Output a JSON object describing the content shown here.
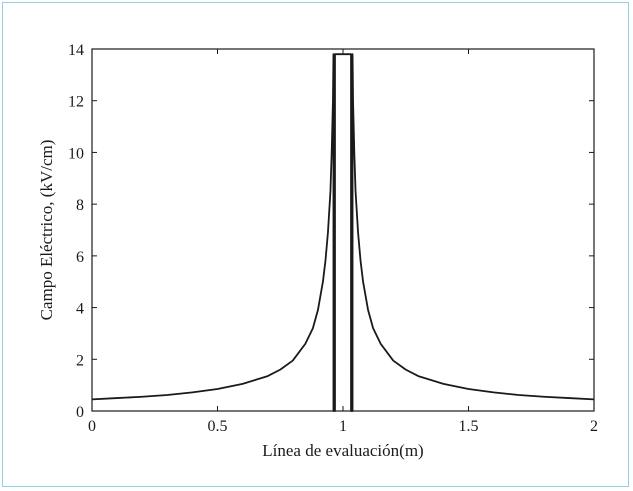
{
  "chart_data": {
    "type": "line",
    "title": "",
    "xlabel": "Línea de evaluación(m)",
    "ylabel": "Campo Eléctrico, (kV/cm)",
    "xlim": [
      0,
      2
    ],
    "ylim": [
      0,
      14
    ],
    "xticks": [
      0,
      0.5,
      1,
      1.5,
      2
    ],
    "xtick_labels": [
      "0",
      "0.5",
      "1",
      "1.5",
      "2"
    ],
    "yticks": [
      0,
      2,
      4,
      6,
      8,
      10,
      12,
      14
    ],
    "ytick_labels": [
      "0",
      "2",
      "4",
      "6",
      "8",
      "10",
      "12",
      "14"
    ],
    "grid": false,
    "series": [
      {
        "name": "",
        "color": "#1a1a1a",
        "x": [
          0,
          0.1,
          0.2,
          0.3,
          0.4,
          0.5,
          0.6,
          0.7,
          0.75,
          0.8,
          0.85,
          0.88,
          0.9,
          0.92,
          0.93,
          0.94,
          0.95,
          0.955,
          0.96,
          0.962,
          0.962,
          0.968,
          0.968,
          1.032,
          1.032,
          1.038,
          1.038,
          1.04,
          1.045,
          1.05,
          1.06,
          1.07,
          1.08,
          1.1,
          1.12,
          1.15,
          1.2,
          1.25,
          1.3,
          1.4,
          1.5,
          1.6,
          1.7,
          1.8,
          1.9,
          2.0
        ],
        "y": [
          0.45,
          0.5,
          0.55,
          0.62,
          0.72,
          0.85,
          1.05,
          1.35,
          1.6,
          1.95,
          2.6,
          3.2,
          3.9,
          5.0,
          5.8,
          6.9,
          8.5,
          10.0,
          12.0,
          13.8,
          0,
          0,
          13.8,
          13.8,
          0,
          0,
          13.8,
          12.0,
          10.0,
          8.5,
          6.9,
          5.8,
          5.0,
          3.9,
          3.2,
          2.6,
          1.95,
          1.6,
          1.35,
          1.05,
          0.85,
          0.72,
          0.62,
          0.55,
          0.5,
          0.45
        ]
      }
    ]
  }
}
